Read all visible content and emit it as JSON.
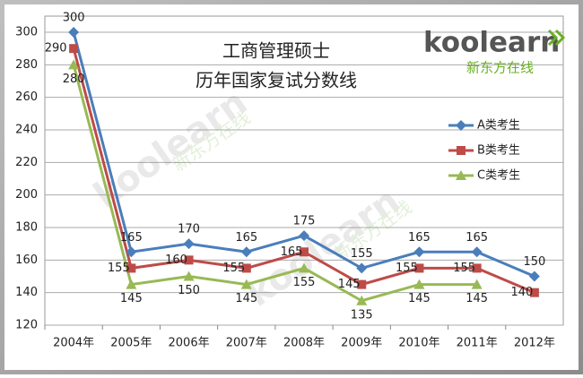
{
  "chart_data": {
    "type": "line",
    "title": "工商管理硕士",
    "subtitle": "历年国家复试分数线",
    "logo": {
      "brand": "koolearn",
      "tagline": "新东方在线"
    },
    "categories": [
      "2004年",
      "2005年",
      "2006年",
      "2007年",
      "2008年",
      "2009年",
      "2010年",
      "2011年",
      "2012年"
    ],
    "series": [
      {
        "name": "A类考生",
        "color": "#4a7ebb",
        "marker": "diamond",
        "values": [
          300,
          165,
          170,
          165,
          175,
          155,
          165,
          165,
          150
        ]
      },
      {
        "name": "B类考生",
        "color": "#be4b48",
        "marker": "square",
        "values": [
          290,
          155,
          160,
          155,
          165,
          145,
          155,
          155,
          140
        ]
      },
      {
        "name": "C类考生",
        "color": "#98b954",
        "marker": "triangle",
        "values": [
          280,
          145,
          150,
          145,
          155,
          135,
          145,
          145,
          null
        ]
      }
    ],
    "ylim": [
      120,
      300
    ],
    "yticks": [
      120,
      140,
      160,
      180,
      200,
      220,
      240,
      260,
      280,
      300
    ],
    "grid": true,
    "legend": "right"
  }
}
